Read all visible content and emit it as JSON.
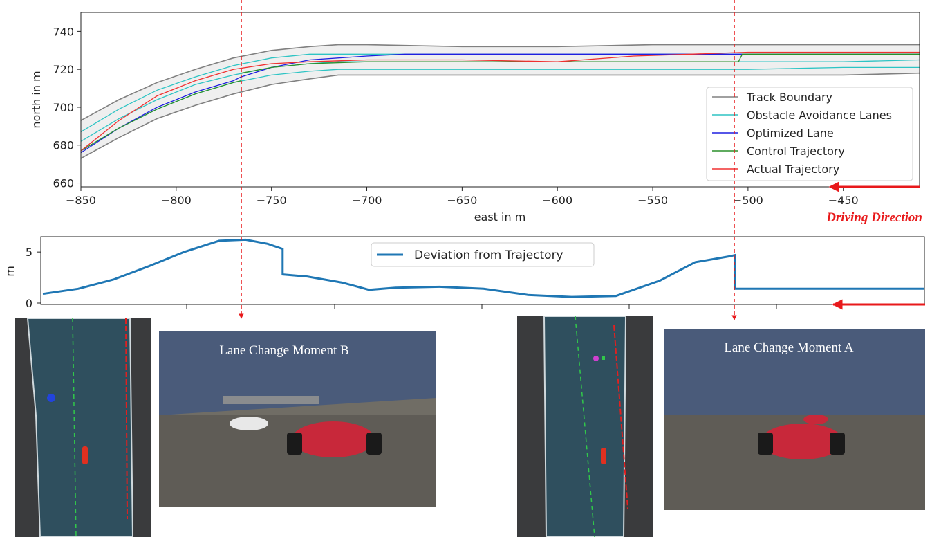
{
  "top_chart": {
    "xlabel": "east in m",
    "ylabel": "north in m",
    "xlim": [
      -850,
      -410
    ],
    "ylim": [
      658,
      750
    ],
    "xticks": [
      -850,
      -800,
      -750,
      -700,
      -650,
      -600,
      -550,
      -500,
      -450
    ],
    "xtick_labels": [
      "−850",
      "−800",
      "−750",
      "−700",
      "−650",
      "−600",
      "−550",
      "−500",
      "−450"
    ],
    "yticks": [
      660,
      680,
      700,
      720,
      740
    ],
    "ytick_labels": [
      "660",
      "680",
      "700",
      "720",
      "740"
    ],
    "legend_position": "lower-right",
    "legend": [
      "Track Boundary",
      "Obstacle Avoidance Lanes",
      "Optimized Lane",
      "Control Trajectory",
      "Actual Trajectory"
    ]
  },
  "bottom_chart": {
    "ylabel": "m",
    "yticks": [
      0,
      5
    ],
    "ytick_labels": [
      "0",
      "5"
    ],
    "legend": "Deviation from Trajectory"
  },
  "annotations": {
    "driving_direction": "Driving Direction",
    "moment_b": "Lane Change Moment B",
    "moment_a": "Lane Change Moment A"
  },
  "colors": {
    "boundary": "#808080",
    "avoidance": "#2ec4c4",
    "optimized": "#1f1fe0",
    "control": "#2a8f2a",
    "actual": "#f03030",
    "deviation": "#1f77b4",
    "arrow": "#e8191b",
    "track_fill": "#efefef"
  },
  "chart_data": [
    {
      "type": "line",
      "title": "",
      "xlabel": "east in m",
      "ylabel": "north in m",
      "xlim": [
        -850,
        -410
      ],
      "ylim": [
        658,
        750
      ],
      "series": [
        {
          "name": "Track Boundary",
          "x": [
            -850,
            -830,
            -810,
            -790,
            -770,
            -750,
            -730,
            -715,
            -700,
            -650,
            -600,
            -550,
            -500,
            -450,
            -410
          ],
          "y": [
            693,
            704,
            713,
            720,
            726,
            730,
            732,
            733,
            733,
            732,
            732,
            733,
            733,
            733,
            733
          ]
        },
        {
          "name": "Track Boundary",
          "x": [
            -850,
            -830,
            -810,
            -790,
            -770,
            -750,
            -730,
            -715,
            -700,
            -650,
            -600,
            -550,
            -500,
            -450,
            -410
          ],
          "y": [
            673,
            684,
            694,
            701,
            707,
            712,
            715,
            717,
            717,
            717,
            717,
            717,
            717,
            717,
            718
          ]
        },
        {
          "name": "Obstacle Avoidance Lanes",
          "x": [
            -850,
            -830,
            -810,
            -790,
            -770,
            -750,
            -730,
            -715,
            -700,
            -650,
            -600,
            -550,
            -500,
            -450,
            -410
          ],
          "y": [
            687,
            699,
            709,
            716,
            722,
            726,
            728,
            728,
            728,
            728,
            728,
            728,
            728,
            728,
            728
          ]
        },
        {
          "name": "Obstacle Avoidance Lanes",
          "x": [
            -850,
            -830,
            -810,
            -790,
            -770,
            -750,
            -730,
            -715,
            -700,
            -650,
            -600,
            -550,
            -500,
            -450,
            -410
          ],
          "y": [
            682,
            694,
            704,
            712,
            717,
            721,
            723,
            724,
            724,
            724,
            724,
            724,
            724,
            724,
            725
          ]
        },
        {
          "name": "Obstacle Avoidance Lanes",
          "x": [
            -850,
            -830,
            -810,
            -790,
            -770,
            -750,
            -730,
            -715,
            -700,
            -650,
            -600,
            -550,
            -500,
            -450,
            -410
          ],
          "y": [
            677,
            689,
            699,
            707,
            713,
            717,
            719,
            720,
            720,
            720,
            720,
            720,
            720,
            721,
            721
          ]
        },
        {
          "name": "Optimized Lane",
          "x": [
            -850,
            -830,
            -810,
            -790,
            -770,
            -766,
            -750,
            -730,
            -700,
            -680,
            -650,
            -600,
            -550,
            -520,
            -500,
            -450,
            -410
          ],
          "y": [
            676,
            689,
            700,
            708,
            714,
            716,
            721,
            725,
            727,
            728,
            728,
            728,
            728,
            728,
            728,
            728,
            728
          ]
        },
        {
          "name": "Control Trajectory",
          "x": [
            -850,
            -830,
            -810,
            -790,
            -770,
            -766,
            -766,
            -750,
            -730,
            -700,
            -650,
            -600,
            -550,
            -505,
            -503,
            -450,
            -410
          ],
          "y": [
            677,
            689,
            699,
            707,
            713,
            714,
            718,
            721,
            723,
            724,
            724,
            724,
            724,
            724,
            728,
            728,
            728
          ]
        },
        {
          "name": "Actual Trajectory",
          "x": [
            -850,
            -830,
            -810,
            -790,
            -770,
            -750,
            -730,
            -700,
            -650,
            -600,
            -560,
            -530,
            -500,
            -450,
            -410
          ],
          "y": [
            677,
            693,
            706,
            714,
            720,
            723,
            724,
            725,
            725,
            724,
            727,
            728,
            729,
            729,
            729
          ]
        }
      ]
    },
    {
      "type": "line",
      "title": "",
      "xlabel": "",
      "ylabel": "m",
      "ylim": [
        0,
        6.5
      ],
      "series": [
        {
          "name": "Deviation from Trajectory",
          "x": [
            0,
            0.04,
            0.08,
            0.12,
            0.16,
            0.2,
            0.23,
            0.255,
            0.272,
            0.272,
            0.3,
            0.34,
            0.37,
            0.4,
            0.45,
            0.5,
            0.55,
            0.6,
            0.65,
            0.7,
            0.74,
            0.78,
            0.785,
            0.785,
            0.85,
            0.9,
            0.95,
            1.0
          ],
          "y": [
            0.9,
            1.4,
            2.3,
            3.6,
            5.0,
            6.1,
            6.2,
            5.8,
            5.3,
            2.8,
            2.6,
            2.0,
            1.3,
            1.5,
            1.6,
            1.4,
            0.8,
            0.6,
            0.7,
            2.2,
            4.0,
            4.6,
            4.7,
            1.4,
            1.4,
            1.4,
            1.4,
            1.4
          ]
        }
      ]
    }
  ]
}
